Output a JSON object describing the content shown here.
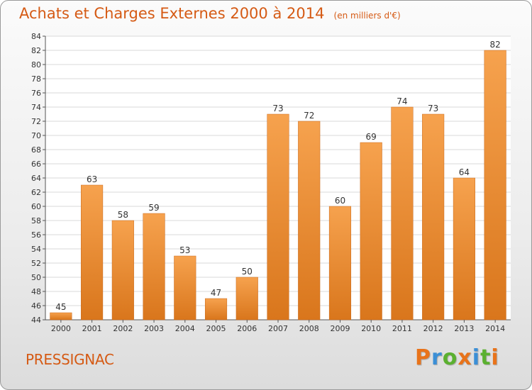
{
  "header": {
    "title": "Achats et Charges Externes 2000 à 2014",
    "unit": "(en milliers d'€)"
  },
  "footer": {
    "town": "PRESSIGNAC",
    "brand": "Proxiti"
  },
  "colors": {
    "accent": "#d55a14",
    "bar_light": "#f6a24e",
    "bar_dark": "#d9761c",
    "grid": "#d9d9d9",
    "brand_letters": [
      "#e8731a",
      "#3b8fd6",
      "#5bb030",
      "#e8731a",
      "#3b8fd6",
      "#5bb030",
      "#e8731a"
    ]
  },
  "chart_data": {
    "type": "bar",
    "title": "Achats et Charges Externes 2000 à 2014",
    "subtitle": "(en milliers d'€)",
    "xlabel": "",
    "ylabel": "",
    "categories": [
      "2000",
      "2001",
      "2002",
      "2003",
      "2004",
      "2005",
      "2006",
      "2007",
      "2008",
      "2009",
      "2010",
      "2011",
      "2012",
      "2013",
      "2014"
    ],
    "values": [
      45,
      63,
      58,
      59,
      53,
      47,
      50,
      73,
      72,
      60,
      69,
      74,
      73,
      64,
      82
    ],
    "ylim": [
      44,
      84
    ],
    "yticks": [
      44,
      46,
      48,
      50,
      52,
      54,
      56,
      58,
      60,
      62,
      64,
      66,
      68,
      70,
      72,
      74,
      76,
      78,
      80,
      82,
      84
    ],
    "grid": true,
    "legend": "none"
  }
}
